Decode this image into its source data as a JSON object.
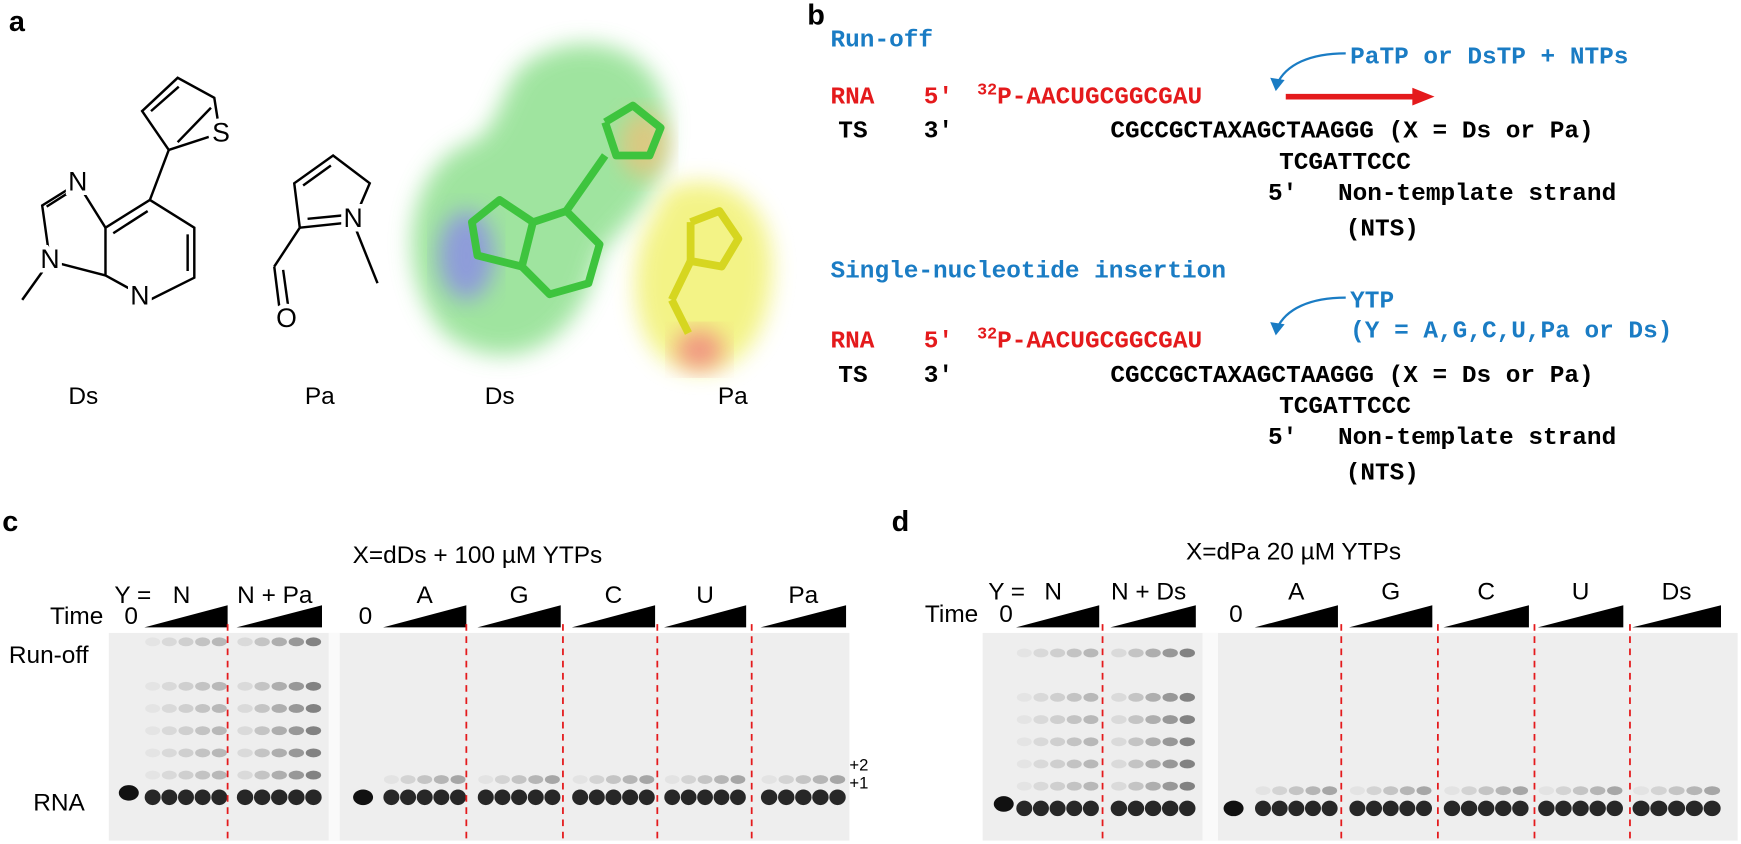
{
  "panel_a": {
    "label": "a",
    "ds_atoms": [
      "N",
      "N",
      "N",
      "S"
    ],
    "pa_atoms": [
      "N",
      "O"
    ],
    "captions": [
      "Ds",
      "Pa",
      "Ds",
      "Pa"
    ]
  },
  "panel_b": {
    "label": "b",
    "schemes": [
      {
        "title": "Run-off",
        "reagent": [
          "PaTP or DsTP + NTPs"
        ],
        "rna_label": "RNA",
        "rna_end": "5′",
        "isotope": "32",
        "rna_seq": "P-AACUGCGGCGAU",
        "ts_label": "TS",
        "ts_end": "3′",
        "ts_seq": "CGCCGCTAXAGCTAAGGG (X = Ds or Pa)",
        "nts_seq": "TCGATTCCC",
        "nts_end": "5′",
        "nts_name": "Non-template strand",
        "nts_abbr": "(NTS)"
      },
      {
        "title": "Single-nucleotide insertion",
        "reagent": [
          "YTP",
          "(Y = A,G,C,U,Pa or Ds)"
        ],
        "rna_label": "RNA",
        "rna_end": "5′",
        "isotope": "32",
        "rna_seq": "P-AACUGCGGCGAU",
        "ts_label": "TS",
        "ts_end": "3′",
        "ts_seq": "CGCCGCTAXAGCTAAGGG (X = Ds or Pa)",
        "nts_seq": "TCGATTCCC",
        "nts_end": "5′",
        "nts_name": "Non-template strand",
        "nts_abbr": "(NTS)"
      }
    ]
  },
  "panel_c": {
    "label": "c",
    "title": "X=dDs + 100 µM YTPs",
    "y_label": "Y =",
    "groups": [
      "N",
      "N + Pa",
      "A",
      "G",
      "C",
      "U",
      "Pa"
    ],
    "time_label": "Time",
    "zeros": [
      "0",
      "0"
    ],
    "bands": [
      "Run-off",
      "RNA"
    ],
    "products": [
      "+2",
      "+1"
    ]
  },
  "panel_d": {
    "label": "d",
    "title": "X=dPa 20 µM YTPs",
    "y_label": "Y =",
    "groups": [
      "N",
      "N + Ds",
      "A",
      "G",
      "C",
      "U",
      "Ds"
    ],
    "time_label": "Time",
    "zeros": [
      "0",
      "0"
    ]
  }
}
